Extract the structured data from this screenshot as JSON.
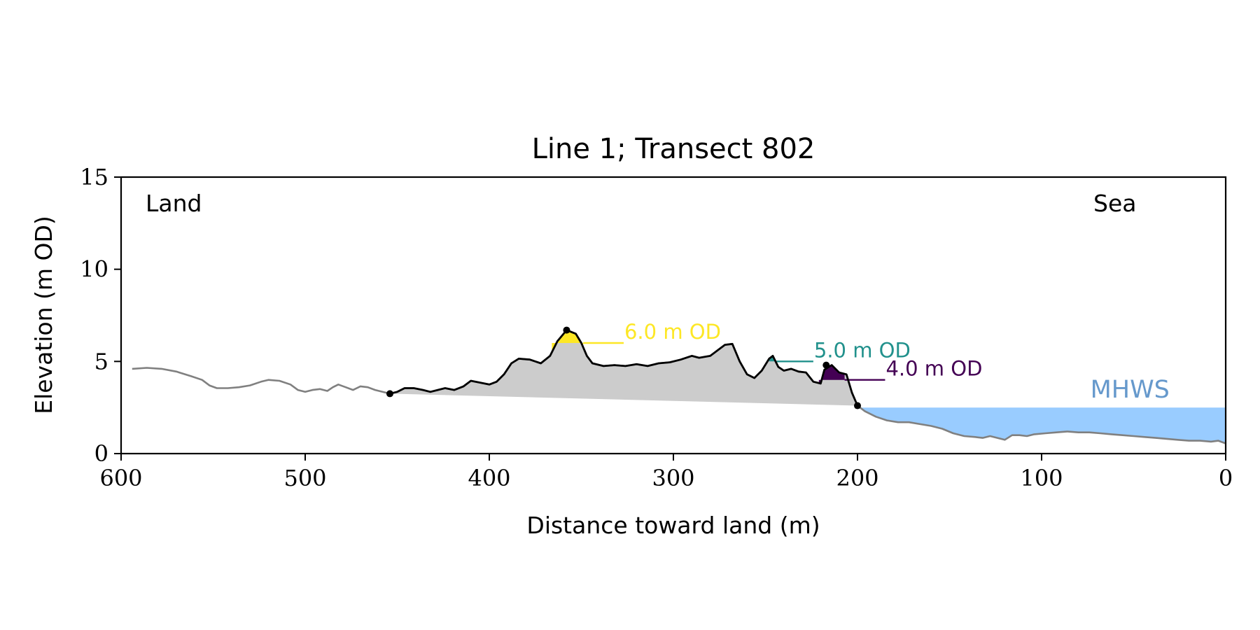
{
  "chart_data": {
    "type": "area",
    "title": "Line 1; Transect 802",
    "xlabel": "Distance toward land (m)",
    "ylabel": "Elevation (m OD)",
    "xlim": [
      600,
      0
    ],
    "ylim": [
      0,
      15
    ],
    "x_ticks": [
      {
        "value": 600,
        "label": "600"
      },
      {
        "value": 500,
        "label": "500"
      },
      {
        "value": 400,
        "label": "400"
      },
      {
        "value": 300,
        "label": "300"
      },
      {
        "value": 200,
        "label": "200"
      },
      {
        "value": 100,
        "label": "100"
      },
      {
        "value": 0,
        "label": "0"
      }
    ],
    "y_ticks": [
      {
        "value": 0,
        "label": "0"
      },
      {
        "value": 5,
        "label": "5"
      },
      {
        "value": 10,
        "label": "10"
      },
      {
        "value": 15,
        "label": "15"
      }
    ],
    "grid": false,
    "corner_labels": {
      "left": "Land",
      "right": "Sea"
    },
    "colors": {
      "profile": "#808080",
      "dune": "#000000",
      "dune_fill": "#cccccc",
      "sea": "#99ccff",
      "mhws_text": "#6699cc",
      "level_6": "#fde725",
      "level_5": "#21918c",
      "level_4": "#440154"
    },
    "mhws": {
      "label": "MHWS",
      "elevation": 2.5
    },
    "profile": [
      [
        594,
        4.6
      ],
      [
        586,
        4.65
      ],
      [
        578,
        4.6
      ],
      [
        570,
        4.45
      ],
      [
        562,
        4.2
      ],
      [
        556,
        4.0
      ],
      [
        552,
        3.7
      ],
      [
        548,
        3.55
      ],
      [
        542,
        3.55
      ],
      [
        536,
        3.6
      ],
      [
        530,
        3.7
      ],
      [
        524,
        3.9
      ],
      [
        520,
        4.0
      ],
      [
        514,
        3.95
      ],
      [
        508,
        3.75
      ],
      [
        504,
        3.45
      ],
      [
        500,
        3.35
      ],
      [
        496,
        3.45
      ],
      [
        492,
        3.5
      ],
      [
        488,
        3.4
      ],
      [
        485,
        3.6
      ],
      [
        482,
        3.75
      ],
      [
        478,
        3.6
      ],
      [
        474,
        3.45
      ],
      [
        470,
        3.65
      ],
      [
        466,
        3.6
      ],
      [
        462,
        3.45
      ],
      [
        458,
        3.35
      ],
      [
        454,
        3.25
      ],
      [
        450,
        3.35
      ],
      [
        446,
        3.55
      ],
      [
        441,
        3.55
      ],
      [
        436,
        3.45
      ],
      [
        432,
        3.35
      ],
      [
        428,
        3.45
      ],
      [
        424,
        3.55
      ],
      [
        419,
        3.45
      ],
      [
        414,
        3.65
      ],
      [
        410,
        3.95
      ],
      [
        405,
        3.85
      ],
      [
        400,
        3.75
      ],
      [
        396,
        3.9
      ],
      [
        392,
        4.3
      ],
      [
        388,
        4.9
      ],
      [
        384,
        5.15
      ],
      [
        378,
        5.1
      ],
      [
        372,
        4.9
      ],
      [
        367,
        5.3
      ],
      [
        363,
        6.1
      ],
      [
        358,
        6.7
      ],
      [
        353,
        6.5
      ],
      [
        350,
        6.0
      ],
      [
        347,
        5.3
      ],
      [
        344,
        4.9
      ],
      [
        338,
        4.75
      ],
      [
        332,
        4.8
      ],
      [
        326,
        4.75
      ],
      [
        320,
        4.85
      ],
      [
        314,
        4.75
      ],
      [
        308,
        4.9
      ],
      [
        302,
        4.95
      ],
      [
        296,
        5.1
      ],
      [
        290,
        5.3
      ],
      [
        286,
        5.2
      ],
      [
        280,
        5.3
      ],
      [
        276,
        5.6
      ],
      [
        272,
        5.9
      ],
      [
        268,
        5.95
      ],
      [
        264,
        5.0
      ],
      [
        260,
        4.3
      ],
      [
        256,
        4.1
      ],
      [
        252,
        4.5
      ],
      [
        248,
        5.15
      ],
      [
        246,
        5.3
      ],
      [
        243,
        4.7
      ],
      [
        240,
        4.5
      ],
      [
        236,
        4.6
      ],
      [
        232,
        4.45
      ],
      [
        228,
        4.4
      ],
      [
        224,
        3.9
      ],
      [
        220,
        3.8
      ],
      [
        218,
        4.55
      ],
      [
        214,
        4.8
      ],
      [
        210,
        4.4
      ],
      [
        206,
        4.3
      ],
      [
        203,
        3.3
      ],
      [
        200,
        2.6
      ],
      [
        196,
        2.3
      ],
      [
        190,
        2.0
      ],
      [
        184,
        1.8
      ],
      [
        178,
        1.7
      ],
      [
        172,
        1.7
      ],
      [
        166,
        1.6
      ],
      [
        160,
        1.5
      ],
      [
        154,
        1.35
      ],
      [
        148,
        1.1
      ],
      [
        142,
        0.95
      ],
      [
        136,
        0.9
      ],
      [
        132,
        0.85
      ],
      [
        128,
        0.95
      ],
      [
        124,
        0.85
      ],
      [
        120,
        0.75
      ],
      [
        116,
        1.0
      ],
      [
        112,
        1.0
      ],
      [
        108,
        0.95
      ],
      [
        104,
        1.05
      ],
      [
        98,
        1.1
      ],
      [
        92,
        1.15
      ],
      [
        86,
        1.2
      ],
      [
        80,
        1.15
      ],
      [
        74,
        1.15
      ],
      [
        68,
        1.1
      ],
      [
        62,
        1.05
      ],
      [
        56,
        1.0
      ],
      [
        50,
        0.95
      ],
      [
        44,
        0.9
      ],
      [
        38,
        0.85
      ],
      [
        32,
        0.8
      ],
      [
        26,
        0.75
      ],
      [
        20,
        0.7
      ],
      [
        14,
        0.7
      ],
      [
        8,
        0.65
      ],
      [
        4,
        0.7
      ],
      [
        0,
        0.55
      ]
    ],
    "dune_range": [
      454,
      200
    ],
    "dune_points": [
      {
        "x": 454,
        "y": 3.25
      },
      {
        "x": 358,
        "y": 6.7
      },
      {
        "x": 217,
        "y": 4.8
      },
      {
        "x": 200,
        "y": 2.6
      }
    ],
    "levels": [
      {
        "label": "6.0 m OD",
        "elevation": 6.0,
        "color_key": "level_6",
        "fill_range": [
          366,
          349
        ],
        "line_range": [
          349,
          327
        ]
      },
      {
        "label": "5.0 m OD",
        "elevation": 5.0,
        "color_key": "level_5",
        "fill_range": [
          248,
          244
        ],
        "line_range": [
          244,
          224
        ]
      },
      {
        "label": "4.0 m OD",
        "elevation": 4.0,
        "color_key": "level_4",
        "fill_range": [
          221,
          207
        ],
        "line_range": [
          207,
          185
        ]
      }
    ]
  }
}
